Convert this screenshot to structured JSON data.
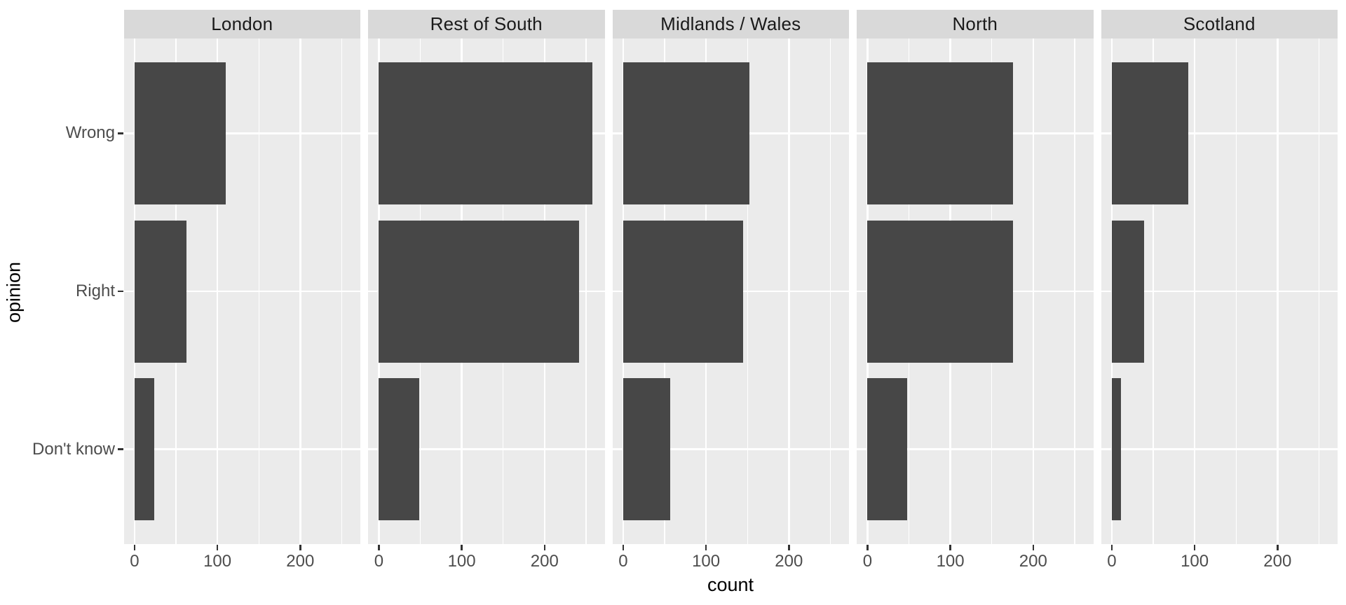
{
  "chart_data": {
    "type": "bar",
    "orientation": "horizontal",
    "title": "",
    "xlabel": "count",
    "ylabel": "opinion",
    "categories": [
      "Wrong",
      "Right",
      "Don't know"
    ],
    "facets": [
      "London",
      "Rest of South",
      "Midlands / Wales",
      "North",
      "Scotland"
    ],
    "series": [
      {
        "name": "London",
        "values": [
          110,
          63,
          24
        ]
      },
      {
        "name": "Rest of South",
        "values": [
          258,
          242,
          49
        ]
      },
      {
        "name": "Midlands / Wales",
        "values": [
          152,
          145,
          57
        ]
      },
      {
        "name": "North",
        "values": [
          176,
          176,
          48
        ]
      },
      {
        "name": "Scotland",
        "values": [
          92,
          39,
          11
        ]
      }
    ],
    "x_ticks": [
      0,
      100,
      200
    ],
    "x_minor_gridlines": [
      50,
      150,
      250
    ],
    "xlim": [
      -13,
      273
    ],
    "grid": "white-on-grey, major verticals at ticks, minors between, horizontal majors at category centers",
    "legend": "none"
  },
  "colors": {
    "bar_fill": "#474747",
    "panel_background": "#EBEBEB",
    "strip_background": "#D9D9D9",
    "grid_line": "#FFFFFF",
    "axis_text": "#4D4D4D",
    "axis_title": "#000000",
    "strip_text": "#1A1A1A",
    "tick_mark": "#333333",
    "page_background": "#FFFFFF"
  }
}
